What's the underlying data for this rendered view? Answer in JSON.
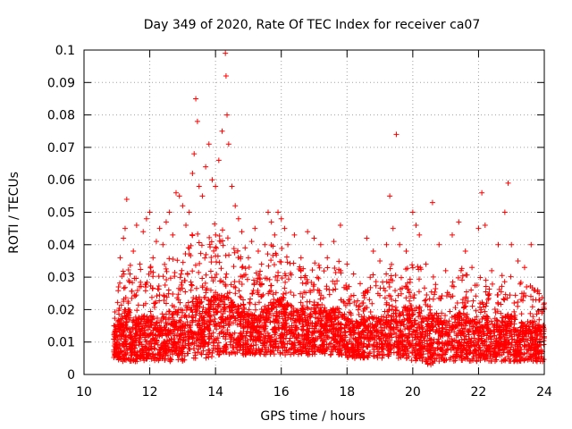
{
  "chart_data": {
    "type": "scatter",
    "title": "Day 349 of 2020, Rate Of TEC Index for receiver ca07",
    "xlabel": "GPS time / hours",
    "ylabel": "ROTI / TECUs",
    "xlim": [
      10,
      24
    ],
    "ylim": [
      0,
      0.1
    ],
    "xticks": [
      10,
      12,
      14,
      16,
      18,
      20,
      22,
      24
    ],
    "xtick_labels": [
      "10",
      "12",
      "14",
      "16",
      "18",
      "20",
      "22",
      "24"
    ],
    "yticks": [
      0,
      0.01,
      0.02,
      0.03,
      0.04,
      0.05,
      0.06,
      0.07,
      0.08,
      0.09,
      0.1
    ],
    "ytick_labels": [
      "0",
      "0.01",
      "0.02",
      "0.03",
      "0.04",
      "0.05",
      "0.06",
      "0.07",
      "0.08",
      "0.09",
      "0.1"
    ],
    "grid": true,
    "marker": "+",
    "color": "#ff0000",
    "series": [
      {
        "name": "ROTI",
        "points": [
          [
            10.95,
            0.006
          ],
          [
            11.0,
            0.012
          ],
          [
            11.05,
            0.027
          ],
          [
            11.1,
            0.036
          ],
          [
            11.15,
            0.018
          ],
          [
            11.2,
            0.042
          ],
          [
            11.25,
            0.045
          ],
          [
            11.3,
            0.054
          ],
          [
            11.35,
            0.022
          ],
          [
            11.4,
            0.031
          ],
          [
            11.5,
            0.038
          ],
          [
            11.6,
            0.046
          ],
          [
            11.7,
            0.034
          ],
          [
            11.8,
            0.044
          ],
          [
            11.9,
            0.048
          ],
          [
            12.0,
            0.05
          ],
          [
            12.1,
            0.036
          ],
          [
            12.2,
            0.041
          ],
          [
            12.3,
            0.045
          ],
          [
            12.4,
            0.04
          ],
          [
            12.5,
            0.047
          ],
          [
            12.6,
            0.05
          ],
          [
            12.7,
            0.043
          ],
          [
            12.8,
            0.056
          ],
          [
            12.9,
            0.055
          ],
          [
            13.0,
            0.052
          ],
          [
            13.1,
            0.046
          ],
          [
            13.2,
            0.05
          ],
          [
            13.3,
            0.062
          ],
          [
            13.35,
            0.068
          ],
          [
            13.4,
            0.085
          ],
          [
            13.45,
            0.078
          ],
          [
            13.5,
            0.058
          ],
          [
            13.6,
            0.055
          ],
          [
            13.7,
            0.064
          ],
          [
            13.8,
            0.071
          ],
          [
            13.9,
            0.06
          ],
          [
            14.0,
            0.058
          ],
          [
            14.1,
            0.066
          ],
          [
            14.2,
            0.075
          ],
          [
            14.3,
            0.099
          ],
          [
            14.32,
            0.092
          ],
          [
            14.35,
            0.08
          ],
          [
            14.4,
            0.071
          ],
          [
            14.5,
            0.058
          ],
          [
            14.6,
            0.052
          ],
          [
            14.7,
            0.048
          ],
          [
            14.8,
            0.044
          ],
          [
            14.9,
            0.039
          ],
          [
            15.0,
            0.036
          ],
          [
            15.1,
            0.041
          ],
          [
            15.2,
            0.045
          ],
          [
            15.3,
            0.038
          ],
          [
            15.4,
            0.034
          ],
          [
            15.5,
            0.04
          ],
          [
            15.6,
            0.05
          ],
          [
            15.7,
            0.047
          ],
          [
            15.8,
            0.043
          ],
          [
            15.9,
            0.05
          ],
          [
            16.0,
            0.048
          ],
          [
            16.1,
            0.045
          ],
          [
            16.2,
            0.04
          ],
          [
            16.4,
            0.043
          ],
          [
            16.6,
            0.036
          ],
          [
            16.8,
            0.044
          ],
          [
            17.0,
            0.042
          ],
          [
            17.2,
            0.04
          ],
          [
            17.4,
            0.036
          ],
          [
            17.6,
            0.041
          ],
          [
            17.8,
            0.046
          ],
          [
            18.0,
            0.034
          ],
          [
            18.2,
            0.031
          ],
          [
            18.4,
            0.028
          ],
          [
            18.6,
            0.042
          ],
          [
            18.8,
            0.038
          ],
          [
            19.0,
            0.035
          ],
          [
            19.2,
            0.04
          ],
          [
            19.3,
            0.055
          ],
          [
            19.4,
            0.045
          ],
          [
            19.5,
            0.074
          ],
          [
            19.6,
            0.04
          ],
          [
            19.8,
            0.038
          ],
          [
            20.0,
            0.05
          ],
          [
            20.1,
            0.046
          ],
          [
            20.2,
            0.043
          ],
          [
            20.4,
            0.034
          ],
          [
            20.6,
            0.053
          ],
          [
            20.8,
            0.04
          ],
          [
            21.0,
            0.032
          ],
          [
            21.2,
            0.043
          ],
          [
            21.4,
            0.047
          ],
          [
            21.6,
            0.038
          ],
          [
            21.8,
            0.033
          ],
          [
            22.0,
            0.045
          ],
          [
            22.1,
            0.056
          ],
          [
            22.2,
            0.046
          ],
          [
            22.4,
            0.032
          ],
          [
            22.6,
            0.04
          ],
          [
            22.8,
            0.05
          ],
          [
            22.9,
            0.059
          ],
          [
            23.0,
            0.04
          ],
          [
            23.2,
            0.035
          ],
          [
            23.4,
            0.033
          ],
          [
            23.6,
            0.04
          ],
          [
            23.8,
            0.026
          ],
          [
            24.0,
            0.022
          ]
        ],
        "envelope": {
          "x": [
            10.9,
            11.0,
            11.2,
            11.4,
            11.6,
            11.8,
            12.0,
            12.2,
            12.4,
            12.6,
            12.8,
            13.0,
            13.2,
            13.4,
            13.6,
            13.8,
            14.0,
            14.2,
            14.4,
            14.6,
            14.8,
            15.0,
            15.2,
            15.4,
            15.6,
            15.8,
            16.0,
            16.2,
            16.4,
            16.6,
            16.8,
            17.0,
            17.2,
            17.4,
            17.6,
            17.8,
            18.0,
            18.2,
            18.4,
            18.6,
            18.8,
            19.0,
            19.2,
            19.4,
            19.6,
            19.8,
            20.0,
            20.2,
            20.4,
            20.6,
            20.8,
            21.0,
            21.2,
            21.4,
            21.6,
            21.8,
            22.0,
            22.2,
            22.4,
            22.6,
            22.8,
            23.0,
            23.2,
            23.4,
            23.6,
            23.8,
            24.0
          ],
          "high": [
            0.02,
            0.026,
            0.033,
            0.036,
            0.03,
            0.034,
            0.035,
            0.032,
            0.036,
            0.038,
            0.036,
            0.037,
            0.042,
            0.045,
            0.04,
            0.044,
            0.048,
            0.045,
            0.043,
            0.04,
            0.036,
            0.034,
            0.034,
            0.033,
            0.038,
            0.042,
            0.04,
            0.037,
            0.035,
            0.034,
            0.033,
            0.036,
            0.036,
            0.033,
            0.035,
            0.036,
            0.028,
            0.026,
            0.024,
            0.029,
            0.031,
            0.03,
            0.032,
            0.035,
            0.033,
            0.034,
            0.036,
            0.034,
            0.028,
            0.03,
            0.031,
            0.028,
            0.032,
            0.034,
            0.032,
            0.029,
            0.03,
            0.032,
            0.028,
            0.03,
            0.032,
            0.031,
            0.029,
            0.028,
            0.028,
            0.026,
            0.024
          ],
          "low": [
            0.004,
            0.004,
            0.004,
            0.004,
            0.004,
            0.004,
            0.004,
            0.004,
            0.004,
            0.004,
            0.004,
            0.004,
            0.005,
            0.005,
            0.005,
            0.005,
            0.006,
            0.006,
            0.006,
            0.006,
            0.006,
            0.006,
            0.006,
            0.006,
            0.006,
            0.006,
            0.006,
            0.006,
            0.006,
            0.006,
            0.006,
            0.006,
            0.006,
            0.006,
            0.006,
            0.006,
            0.005,
            0.005,
            0.005,
            0.005,
            0.005,
            0.005,
            0.005,
            0.005,
            0.005,
            0.005,
            0.004,
            0.004,
            0.003,
            0.003,
            0.004,
            0.004,
            0.004,
            0.004,
            0.004,
            0.004,
            0.004,
            0.004,
            0.004,
            0.004,
            0.004,
            0.004,
            0.004,
            0.004,
            0.004,
            0.004,
            0.004
          ],
          "center": [
            0.01,
            0.012,
            0.014,
            0.014,
            0.012,
            0.013,
            0.013,
            0.012,
            0.013,
            0.014,
            0.014,
            0.014,
            0.016,
            0.017,
            0.016,
            0.017,
            0.018,
            0.018,
            0.017,
            0.016,
            0.015,
            0.014,
            0.014,
            0.014,
            0.016,
            0.017,
            0.017,
            0.016,
            0.015,
            0.015,
            0.015,
            0.016,
            0.016,
            0.015,
            0.015,
            0.015,
            0.013,
            0.012,
            0.012,
            0.013,
            0.013,
            0.013,
            0.014,
            0.015,
            0.014,
            0.015,
            0.015,
            0.014,
            0.012,
            0.013,
            0.013,
            0.012,
            0.013,
            0.014,
            0.013,
            0.012,
            0.012,
            0.013,
            0.012,
            0.012,
            0.013,
            0.013,
            0.012,
            0.012,
            0.012,
            0.011,
            0.011
          ],
          "description": "Dense band of ROTI measurements sampled continuously from ~10.9 h to 24 h"
        }
      }
    ]
  }
}
